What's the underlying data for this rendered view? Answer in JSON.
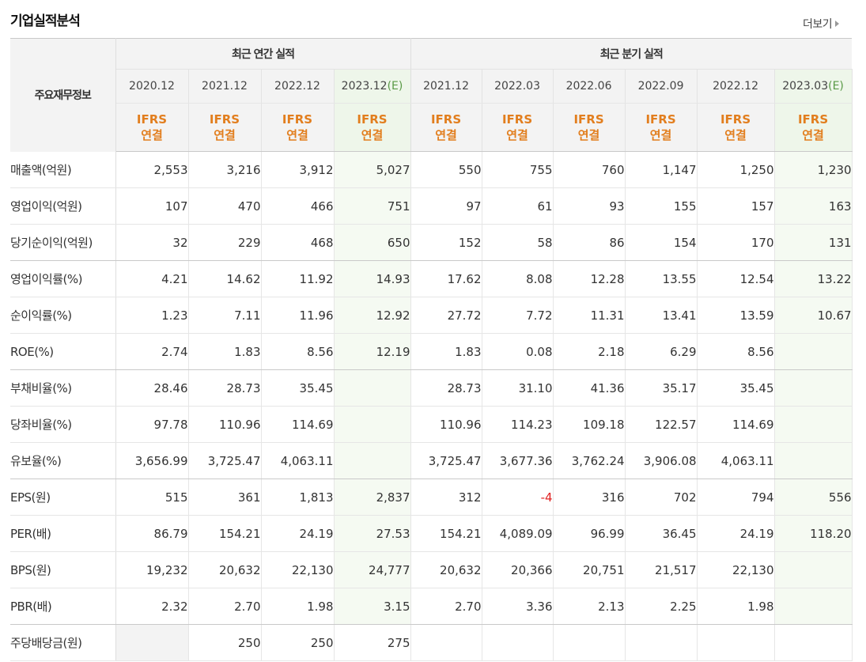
{
  "section_title": "기업실적분석",
  "more_label": "더보기",
  "header": {
    "row_label": "주요재무정보",
    "annual_group": "최근 연간 실적",
    "quarter_group": "최근 분기 실적",
    "annual_periods": [
      {
        "date": "2020.12",
        "suffix": ""
      },
      {
        "date": "2021.12",
        "suffix": ""
      },
      {
        "date": "2022.12",
        "suffix": ""
      },
      {
        "date": "2023.12",
        "suffix": "(E)"
      }
    ],
    "quarter_periods": [
      {
        "date": "2021.12",
        "suffix": ""
      },
      {
        "date": "2022.03",
        "suffix": ""
      },
      {
        "date": "2022.06",
        "suffix": ""
      },
      {
        "date": "2022.09",
        "suffix": ""
      },
      {
        "date": "2022.12",
        "suffix": ""
      },
      {
        "date": "2023.03",
        "suffix": "(E)"
      }
    ],
    "accounting_line1": "IFRS",
    "accounting_line2": "연결"
  },
  "colors": {
    "accounting_text": "#e27e1e",
    "estimate_bg": "#f5faf2",
    "negative_text": "#e02020",
    "header_bg": "#f3f3f3"
  },
  "rows": [
    {
      "label": "매출액(억원)",
      "values": [
        "2,553",
        "3,216",
        "3,912",
        "5,027",
        "550",
        "755",
        "760",
        "1,147",
        "1,250",
        "1,230"
      ]
    },
    {
      "label": "영업이익(억원)",
      "values": [
        "107",
        "470",
        "466",
        "751",
        "97",
        "61",
        "93",
        "155",
        "157",
        "163"
      ]
    },
    {
      "label": "당기순이익(억원)",
      "values": [
        "32",
        "229",
        "468",
        "650",
        "152",
        "58",
        "86",
        "154",
        "170",
        "131"
      ]
    },
    {
      "label": "영업이익률(%)",
      "values": [
        "4.21",
        "14.62",
        "11.92",
        "14.93",
        "17.62",
        "8.08",
        "12.28",
        "13.55",
        "12.54",
        "13.22"
      ]
    },
    {
      "label": "순이익률(%)",
      "values": [
        "1.23",
        "7.11",
        "11.96",
        "12.92",
        "27.72",
        "7.72",
        "11.31",
        "13.41",
        "13.59",
        "10.67"
      ]
    },
    {
      "label": "ROE(%)",
      "values": [
        "2.74",
        "1.83",
        "8.56",
        "12.19",
        "1.83",
        "0.08",
        "2.18",
        "6.29",
        "8.56",
        ""
      ]
    },
    {
      "label": "부채비율(%)",
      "values": [
        "28.46",
        "28.73",
        "35.45",
        "",
        "28.73",
        "31.10",
        "41.36",
        "35.17",
        "35.45",
        ""
      ]
    },
    {
      "label": "당좌비율(%)",
      "values": [
        "97.78",
        "110.96",
        "114.69",
        "",
        "110.96",
        "114.23",
        "109.18",
        "122.57",
        "114.69",
        ""
      ]
    },
    {
      "label": "유보율(%)",
      "values": [
        "3,656.99",
        "3,725.47",
        "4,063.11",
        "",
        "3,725.47",
        "3,677.36",
        "3,762.24",
        "3,906.08",
        "4,063.11",
        ""
      ]
    },
    {
      "label": "EPS(원)",
      "values": [
        "515",
        "361",
        "1,813",
        "2,837",
        "312",
        "-4",
        "316",
        "702",
        "794",
        "556"
      ]
    },
    {
      "label": "PER(배)",
      "values": [
        "86.79",
        "154.21",
        "24.19",
        "27.53",
        "154.21",
        "4,089.09",
        "96.99",
        "36.45",
        "24.19",
        "118.20"
      ]
    },
    {
      "label": "BPS(원)",
      "values": [
        "19,232",
        "20,632",
        "22,130",
        "24,777",
        "20,632",
        "20,366",
        "20,751",
        "21,517",
        "22,130",
        ""
      ]
    },
    {
      "label": "PBR(배)",
      "values": [
        "2.32",
        "2.70",
        "1.98",
        "3.15",
        "2.70",
        "3.36",
        "2.13",
        "2.25",
        "1.98",
        ""
      ]
    },
    {
      "label": "주당배당금(원)",
      "values": [
        "",
        "250",
        "250",
        "275",
        "",
        "",
        "",
        "",
        "",
        ""
      ]
    }
  ]
}
